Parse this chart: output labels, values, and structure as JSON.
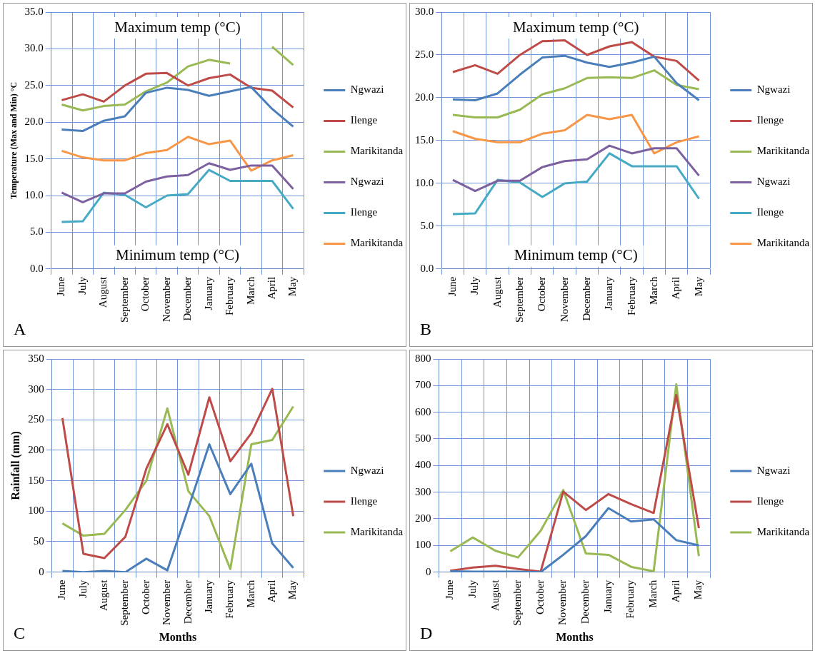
{
  "chart_data": [
    {
      "type": "line",
      "title": "A",
      "ylabel": "Temperature (Max and Min) °C",
      "annotations": [
        "Maximum temp (°C)",
        "Minimum temp (°C)"
      ],
      "categories": [
        "June",
        "July",
        "August",
        "September",
        "October",
        "November",
        "December",
        "January",
        "February",
        "March",
        "April",
        "May"
      ],
      "series": [
        {
          "name": "Ngwazi",
          "color": "#4a7ebb",
          "values": [
            19.0,
            18.8,
            20.2,
            20.8,
            24.0,
            24.7,
            24.4,
            23.6,
            24.2,
            24.8,
            21.8,
            19.4
          ]
        },
        {
          "name": "Ilenge",
          "color": "#be4b48",
          "values": [
            23.0,
            23.8,
            22.8,
            25.0,
            26.6,
            26.7,
            25.0,
            26.0,
            26.5,
            24.7,
            24.3,
            22.0
          ]
        },
        {
          "name": "Marikitanda",
          "color": "#98b954",
          "values": [
            22.4,
            21.6,
            22.2,
            22.4,
            24.2,
            25.4,
            27.6,
            28.5,
            28.0,
            null,
            30.3,
            27.8
          ]
        },
        {
          "name": "Ngwazi",
          "color": "#7d60a0",
          "values": [
            10.4,
            9.1,
            10.3,
            10.3,
            11.9,
            12.6,
            12.8,
            14.4,
            13.5,
            14.1,
            14.1,
            10.9
          ]
        },
        {
          "name": "Ilenge",
          "color": "#46aac5",
          "values": [
            6.4,
            6.5,
            10.4,
            10.1,
            8.4,
            10.0,
            10.2,
            13.5,
            12.0,
            12.0,
            12.0,
            8.2
          ]
        },
        {
          "name": "Marikitanda",
          "color": "#f79646",
          "values": [
            16.1,
            15.2,
            14.8,
            14.8,
            15.8,
            16.2,
            18.0,
            17.0,
            17.5,
            13.4,
            14.8,
            15.5
          ]
        }
      ],
      "ylim": [
        0,
        35
      ],
      "yticks": [
        {
          "value": 0,
          "label": "0.0"
        },
        {
          "value": 5,
          "label": "5.0"
        },
        {
          "value": 10,
          "label": "10.0"
        },
        {
          "value": 15,
          "label": "15.0"
        },
        {
          "value": 20,
          "label": "20.0"
        },
        {
          "value": 25,
          "label": "25.0"
        },
        {
          "value": 30,
          "label": "30.0"
        },
        {
          "value": 35,
          "label": "35.0"
        }
      ],
      "grid": true,
      "legend": "right",
      "line_style": "solid"
    },
    {
      "type": "line",
      "title": "B",
      "annotations": [
        "Maximum temp (°C)",
        "Minimum temp (°C)"
      ],
      "categories": [
        "June",
        "July",
        "August",
        "September",
        "October",
        "November",
        "December",
        "January",
        "February",
        "March",
        "April",
        "May"
      ],
      "series": [
        {
          "name": "Ngwazi",
          "color": "#4a7ebb",
          "values": [
            19.8,
            19.7,
            20.5,
            22.7,
            24.7,
            24.9,
            24.1,
            23.6,
            24.1,
            24.8,
            21.7,
            19.7
          ]
        },
        {
          "name": "Ilenge",
          "color": "#be4b48",
          "values": [
            23.0,
            23.8,
            22.8,
            25.0,
            26.6,
            26.7,
            25.0,
            26.0,
            26.5,
            24.8,
            24.3,
            22.0
          ]
        },
        {
          "name": "Marikitanda",
          "color": "#98b954",
          "values": [
            18.0,
            17.7,
            17.7,
            18.6,
            20.4,
            21.1,
            22.3,
            22.4,
            22.3,
            23.2,
            21.5,
            21.0
          ]
        },
        {
          "name": "Ngwazi",
          "color": "#7d60a0",
          "values": [
            10.4,
            9.1,
            10.3,
            10.3,
            11.9,
            12.6,
            12.8,
            14.4,
            13.5,
            14.1,
            14.1,
            10.9
          ]
        },
        {
          "name": "Ilenge",
          "color": "#46aac5",
          "values": [
            6.4,
            6.5,
            10.4,
            10.1,
            8.4,
            10.0,
            10.2,
            13.5,
            12.0,
            12.0,
            12.0,
            8.2
          ]
        },
        {
          "name": "Marikitanda",
          "color": "#f79646",
          "values": [
            16.1,
            15.2,
            14.8,
            14.8,
            15.8,
            16.2,
            18.0,
            17.5,
            18.0,
            13.5,
            14.8,
            15.5
          ]
        }
      ],
      "ylim": [
        0,
        30
      ],
      "yticks": [
        {
          "value": 0,
          "label": "0.0"
        },
        {
          "value": 5,
          "label": "5.0"
        },
        {
          "value": 10,
          "label": "10.0"
        },
        {
          "value": 15,
          "label": "15.0"
        },
        {
          "value": 20,
          "label": "20.0"
        },
        {
          "value": 25,
          "label": "25.0"
        },
        {
          "value": 30,
          "label": "30.0"
        }
      ],
      "grid": true,
      "legend": "right",
      "line_style": "solid"
    },
    {
      "type": "line",
      "title": "C",
      "xlabel": "Months",
      "ylabel": "Rainfall (mm)",
      "categories": [
        "June",
        "July",
        "August",
        "September",
        "October",
        "November",
        "December",
        "January",
        "February",
        "March",
        "April",
        "May"
      ],
      "series": [
        {
          "name": "Ngwazi",
          "color": "#4a7ebb",
          "values": [
            2,
            0,
            2,
            0,
            22,
            3,
            105,
            210,
            128,
            178,
            47,
            7
          ]
        },
        {
          "name": "Ilenge",
          "color": "#be4b48",
          "values": [
            253,
            30,
            23,
            58,
            170,
            243,
            160,
            287,
            182,
            228,
            301,
            92
          ]
        },
        {
          "name": "Marikitanda",
          "color": "#98b954",
          "values": [
            80,
            60,
            63,
            102,
            150,
            269,
            133,
            92,
            5,
            210,
            217,
            272
          ]
        }
      ],
      "ylim": [
        0,
        350
      ],
      "yticks": [
        0,
        50,
        100,
        150,
        200,
        250,
        300,
        350
      ],
      "grid": true,
      "legend": "right",
      "line_style": "solid"
    },
    {
      "type": "line",
      "title": "D",
      "xlabel": "Months",
      "categories": [
        "June",
        "July",
        "August",
        "September",
        "October",
        "November",
        "December",
        "January",
        "February",
        "March",
        "April",
        "May"
      ],
      "series": [
        {
          "name": "Ngwazi",
          "color": "#4a7ebb",
          "values": [
            3,
            2,
            2,
            2,
            0,
            65,
            135,
            240,
            190,
            198,
            120,
            100
          ]
        },
        {
          "name": "Ilenge",
          "color": "#be4b48",
          "values": [
            5,
            17,
            24,
            12,
            2,
            302,
            233,
            293,
            255,
            222,
            665,
            165
          ]
        },
        {
          "name": "Marikitanda",
          "color": "#98b954",
          "values": [
            78,
            130,
            80,
            55,
            155,
            308,
            70,
            65,
            20,
            3,
            705,
            60
          ]
        }
      ],
      "ylim": [
        0,
        800
      ],
      "yticks": [
        0,
        100,
        200,
        300,
        400,
        500,
        600,
        700,
        800
      ],
      "grid": true,
      "legend": "right",
      "line_style": "solid"
    }
  ]
}
